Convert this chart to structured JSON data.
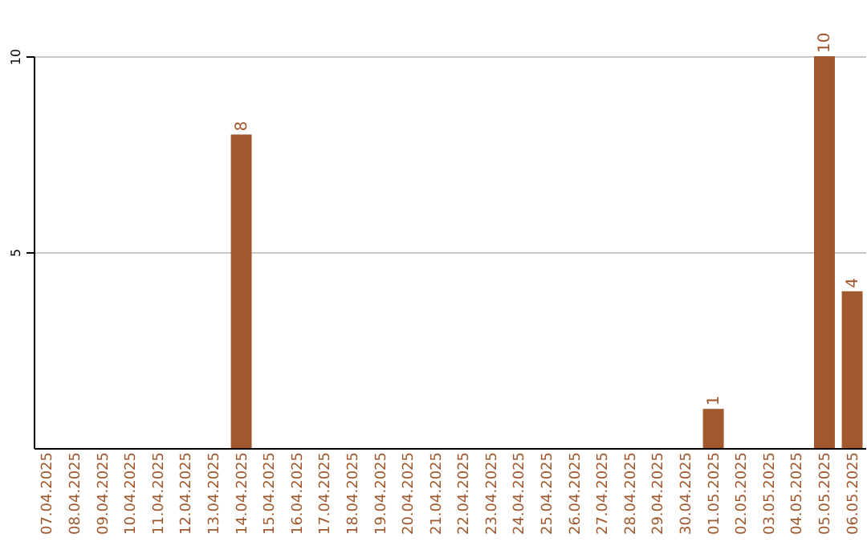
{
  "chart_data": {
    "type": "bar",
    "categories": [
      "07.04.2025",
      "08.04.2025",
      "09.04.2025",
      "10.04.2025",
      "11.04.2025",
      "12.04.2025",
      "13.04.2025",
      "14.04.2025",
      "15.04.2025",
      "16.04.2025",
      "17.04.2025",
      "18.04.2025",
      "19.04.2025",
      "20.04.2025",
      "21.04.2025",
      "22.04.2025",
      "23.04.2025",
      "24.04.2025",
      "25.04.2025",
      "26.04.2025",
      "27.04.2025",
      "28.04.2025",
      "29.04.2025",
      "30.04.2025",
      "01.05.2025",
      "02.05.2025",
      "03.05.2025",
      "04.05.2025",
      "05.05.2025",
      "06.05.2025"
    ],
    "values": [
      0,
      0,
      0,
      0,
      0,
      0,
      0,
      8,
      0,
      0,
      0,
      0,
      0,
      0,
      0,
      0,
      0,
      0,
      0,
      0,
      0,
      0,
      0,
      0,
      1,
      0,
      0,
      0,
      10,
      4
    ],
    "value_labels": [
      null,
      null,
      null,
      null,
      null,
      null,
      null,
      "8",
      null,
      null,
      null,
      null,
      null,
      null,
      null,
      null,
      null,
      null,
      null,
      null,
      null,
      null,
      null,
      null,
      "1",
      null,
      null,
      null,
      "10",
      "4"
    ],
    "color": "#a0582c",
    "ylim": [
      0,
      10
    ],
    "yticks": [
      5,
      10
    ],
    "grid": "y"
  }
}
